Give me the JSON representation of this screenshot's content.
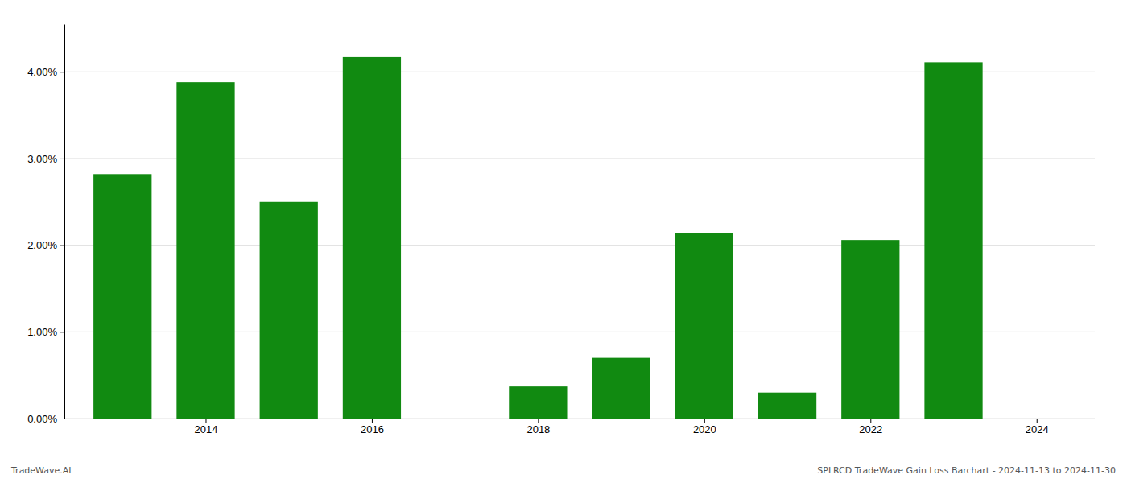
{
  "chart_data": {
    "type": "bar",
    "x": [
      2013,
      2014,
      2015,
      2016,
      2017,
      2018,
      2019,
      2020,
      2021,
      2022,
      2023
    ],
    "values": [
      0.0282,
      0.0388,
      0.025,
      0.0417,
      0.0,
      0.0037,
      0.007,
      0.0214,
      0.003,
      0.0206,
      0.0411
    ],
    "color": "#118a11",
    "xlim": [
      2012.3,
      2024.7
    ],
    "xticks": [
      2014,
      2016,
      2018,
      2020,
      2022,
      2024
    ],
    "ylim": [
      0.0,
      0.0455
    ],
    "yticks": [
      {
        "value": 0.0,
        "label": "0.00%"
      },
      {
        "value": 0.01,
        "label": "1.00%"
      },
      {
        "value": 0.02,
        "label": "2.00%"
      },
      {
        "value": 0.03,
        "label": "3.00%"
      },
      {
        "value": 0.04,
        "label": "4.00%"
      }
    ],
    "grid": true,
    "annotations": [
      "TradeWave.AI",
      "SPLRCD TradeWave Gain Loss Barchart - 2024-11-13 to 2024-11-30"
    ]
  }
}
